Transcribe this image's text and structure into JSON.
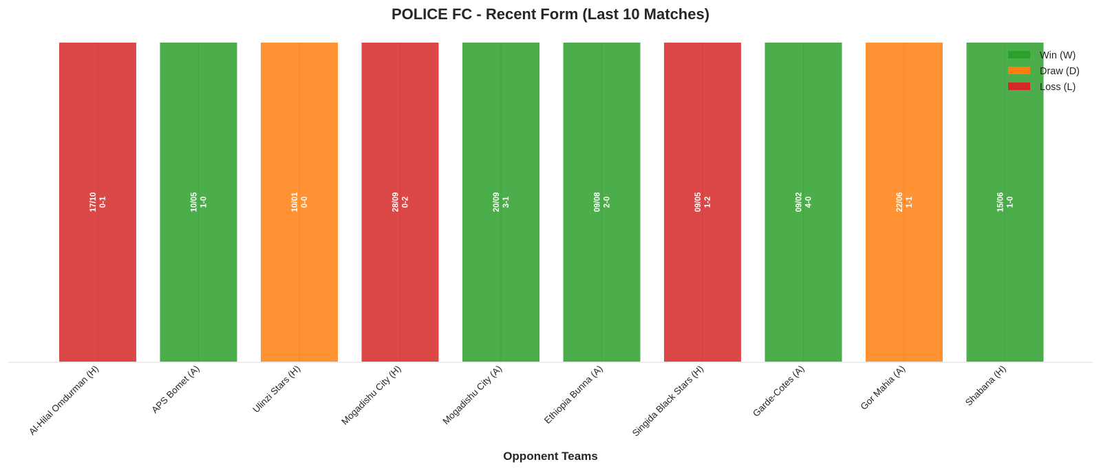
{
  "chart_data": {
    "type": "bar",
    "title": "POLICE FC - Recent Form (Last 10 Matches)",
    "xlabel": "Opponent Teams",
    "ylabel": "",
    "grid": false,
    "legend_position": "top-right",
    "legend": [
      {
        "key": "W",
        "label": "Win (W)",
        "color": "#2ca02c"
      },
      {
        "key": "D",
        "label": "Draw (D)",
        "color": "#ff7f0e"
      },
      {
        "key": "L",
        "label": "Loss (L)",
        "color": "#d62728"
      }
    ],
    "categories": [
      "Al-Hilal Omdurman (H)",
      "APS Bomet (A)",
      "Ulinzi Stars (H)",
      "Mogadishu City (H)",
      "Mogadishu City (A)",
      "Ethiopia Bunna (A)",
      "Singida Black Stars (H)",
      "Garde-Cotes (A)",
      "Gor Mahia (A)",
      "Shabana (H)"
    ],
    "values": [
      1,
      1,
      1,
      1,
      1,
      1,
      1,
      1,
      1,
      1
    ],
    "results": [
      "L",
      "W",
      "D",
      "L",
      "W",
      "W",
      "L",
      "W",
      "D",
      "W"
    ],
    "dates": [
      "17/10",
      "10/05",
      "10/01",
      "28/09",
      "20/09",
      "09/08",
      "09/05",
      "09/02",
      "22/06",
      "15/06"
    ],
    "scores": [
      "0-1",
      "1-0",
      "0-0",
      "0-2",
      "3-1",
      "2-0",
      "1-2",
      "4-0",
      "1-1",
      "1-0"
    ],
    "ylim": [
      0,
      1
    ]
  }
}
